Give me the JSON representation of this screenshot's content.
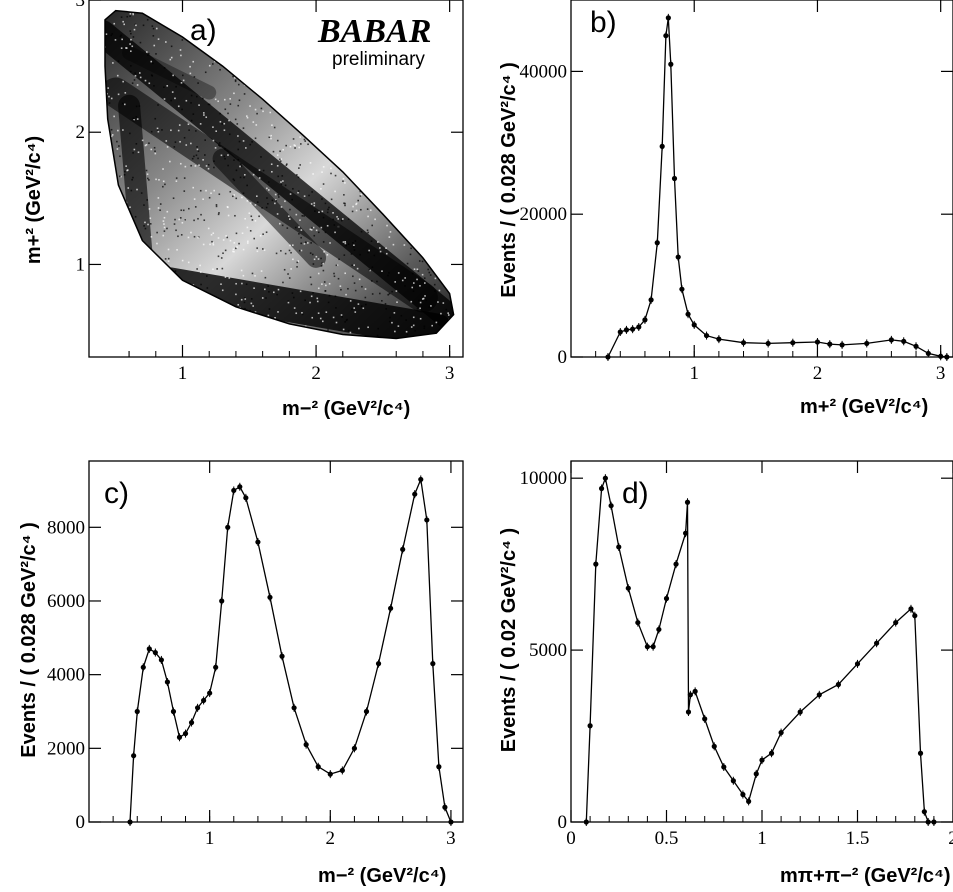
{
  "logo": {
    "main": "BABAR",
    "sub": "preliminary"
  },
  "chart_data": [
    {
      "panel": "a)",
      "type": "scatter",
      "title": "",
      "xlabel": "m−² (GeV²/c⁴)",
      "ylabel": "m+² (GeV²/c⁴)",
      "xlim": [
        0.3,
        3.1
      ],
      "ylim": [
        0.3,
        3.0
      ],
      "xticks": [
        1,
        2,
        3
      ],
      "yticks": [
        1,
        2,
        3
      ],
      "boundary_upper": [
        [
          0.42,
          2.85
        ],
        [
          0.5,
          2.92
        ],
        [
          0.7,
          2.9
        ],
        [
          1.0,
          2.72
        ],
        [
          1.3,
          2.5
        ],
        [
          1.6,
          2.25
        ],
        [
          1.9,
          1.98
        ],
        [
          2.2,
          1.7
        ],
        [
          2.5,
          1.38
        ],
        [
          2.8,
          1.05
        ],
        [
          3.0,
          0.78
        ],
        [
          3.03,
          0.62
        ]
      ],
      "boundary_lower": [
        [
          3.03,
          0.62
        ],
        [
          2.9,
          0.48
        ],
        [
          2.6,
          0.44
        ],
        [
          2.2,
          0.47
        ],
        [
          1.8,
          0.55
        ],
        [
          1.4,
          0.68
        ],
        [
          1.0,
          0.88
        ],
        [
          0.7,
          1.18
        ],
        [
          0.52,
          1.6
        ],
        [
          0.44,
          2.1
        ],
        [
          0.42,
          2.5
        ],
        [
          0.42,
          2.85
        ]
      ],
      "description_bands": [
        "rho band near m+² ≈ 0.6",
        "rho band near m−² ≈ 0.6",
        "K* bands near 0.8"
      ]
    },
    {
      "panel": "b)",
      "type": "line",
      "title": "",
      "xlabel": "m+² (GeV²/c⁴)",
      "ylabel": "Events / ( 0.028 GeV²/c⁴ )",
      "xlim": [
        0,
        3.1
      ],
      "ylim": [
        0,
        50000
      ],
      "xticks": [
        1,
        2,
        3
      ],
      "yticks": [
        0,
        20000,
        40000
      ],
      "x": [
        0.3,
        0.4,
        0.45,
        0.5,
        0.55,
        0.6,
        0.65,
        0.7,
        0.74,
        0.77,
        0.79,
        0.81,
        0.84,
        0.87,
        0.9,
        0.95,
        1.0,
        1.1,
        1.2,
        1.4,
        1.6,
        1.8,
        2.0,
        2.1,
        2.2,
        2.4,
        2.6,
        2.7,
        2.8,
        2.9,
        3.0,
        3.05
      ],
      "values": [
        0,
        3500,
        3800,
        3900,
        4200,
        5200,
        8000,
        16000,
        29500,
        45000,
        47500,
        41000,
        25000,
        14000,
        9500,
        6000,
        4500,
        3000,
        2500,
        2000,
        1900,
        2000,
        2100,
        1800,
        1700,
        1900,
        2400,
        2200,
        1500,
        500,
        100,
        0
      ]
    },
    {
      "panel": "c)",
      "type": "line",
      "title": "",
      "xlabel": "m−² (GeV²/c⁴)",
      "ylabel": "Events / ( 0.028 GeV²/c⁴ )",
      "xlim": [
        0,
        3.1
      ],
      "ylim": [
        0,
        9800
      ],
      "xticks": [
        1,
        2,
        3
      ],
      "yticks": [
        0,
        2000,
        4000,
        6000,
        8000
      ],
      "x": [
        0.34,
        0.37,
        0.4,
        0.45,
        0.5,
        0.55,
        0.6,
        0.65,
        0.7,
        0.75,
        0.8,
        0.85,
        0.9,
        0.95,
        1.0,
        1.05,
        1.1,
        1.15,
        1.2,
        1.25,
        1.3,
        1.4,
        1.5,
        1.6,
        1.7,
        1.8,
        1.9,
        2.0,
        2.1,
        2.2,
        2.3,
        2.4,
        2.5,
        2.6,
        2.7,
        2.75,
        2.8,
        2.85,
        2.9,
        2.95,
        3.0
      ],
      "values": [
        0,
        1800,
        3000,
        4200,
        4700,
        4600,
        4400,
        3800,
        3000,
        2300,
        2400,
        2700,
        3100,
        3300,
        3500,
        4200,
        6000,
        8000,
        9000,
        9100,
        8800,
        7600,
        6100,
        4500,
        3100,
        2100,
        1500,
        1300,
        1400,
        2000,
        3000,
        4300,
        5800,
        7400,
        8900,
        9300,
        8200,
        4300,
        1500,
        400,
        0
      ]
    },
    {
      "panel": "d)",
      "type": "line",
      "title": "",
      "xlabel": "mπ+π−² (GeV²/c⁴)",
      "ylabel": "Events / ( 0.02 GeV²/c⁴ )",
      "xlim": [
        0,
        2.0
      ],
      "ylim": [
        0,
        10500
      ],
      "xticks": [
        0,
        0.5,
        1,
        1.5,
        2
      ],
      "yticks": [
        0,
        5000,
        10000
      ],
      "x": [
        0.08,
        0.1,
        0.13,
        0.16,
        0.18,
        0.21,
        0.25,
        0.3,
        0.35,
        0.4,
        0.43,
        0.46,
        0.5,
        0.55,
        0.6,
        0.61,
        0.615,
        0.625,
        0.65,
        0.7,
        0.75,
        0.8,
        0.85,
        0.9,
        0.93,
        0.97,
        1.0,
        1.05,
        1.1,
        1.2,
        1.3,
        1.4,
        1.5,
        1.6,
        1.7,
        1.78,
        1.8,
        1.83,
        1.85,
        1.87,
        1.9
      ],
      "values": [
        0,
        2800,
        7500,
        9700,
        10000,
        9200,
        8000,
        6800,
        5800,
        5100,
        5100,
        5600,
        6500,
        7500,
        8400,
        9300,
        3200,
        3700,
        3800,
        3000,
        2200,
        1600,
        1200,
        800,
        600,
        1400,
        1800,
        2000,
        2600,
        3200,
        3700,
        4000,
        4600,
        5200,
        5800,
        6200,
        6000,
        2000,
        300,
        0,
        0
      ]
    }
  ]
}
